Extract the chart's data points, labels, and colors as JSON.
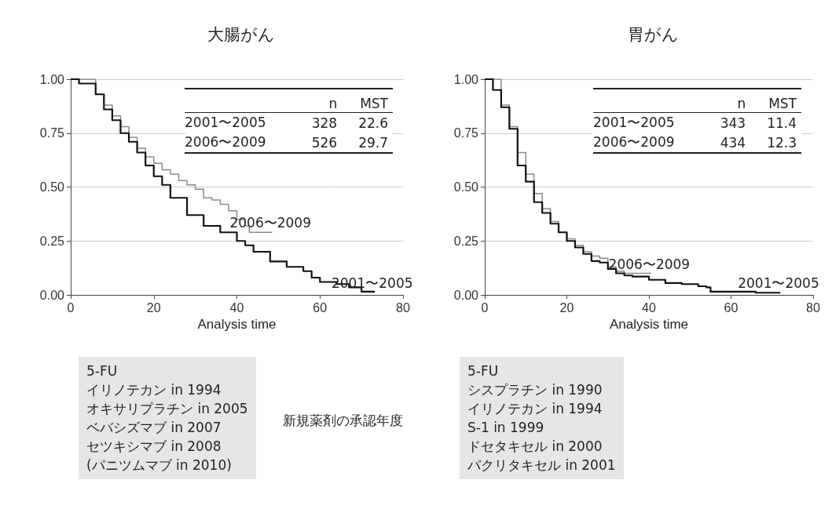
{
  "chart_data": [
    {
      "type": "step",
      "title": "大腸がん",
      "xlabel": "Analysis time",
      "xlim": [
        0,
        80
      ],
      "xticks": [
        0,
        20,
        40,
        60,
        80
      ],
      "ylim": [
        0,
        1
      ],
      "yticks": [
        {
          "value": 0,
          "label": "0.00"
        },
        {
          "value": 0.25,
          "label": "0.25"
        },
        {
          "value": 0.5,
          "label": "0.50"
        },
        {
          "value": 0.75,
          "label": "0.75"
        },
        {
          "value": 1,
          "label": "1.00"
        }
      ],
      "grid": "y",
      "legend": false,
      "marker": "none",
      "line_style": "solid",
      "series": [
        {
          "name": "2006〜2009",
          "color": "#8a8a8a",
          "x": [
            0,
            6,
            8,
            10,
            12,
            14,
            16,
            18,
            20,
            22,
            24,
            26,
            28,
            30,
            32,
            34,
            36,
            38,
            40,
            42,
            43,
            48.5
          ],
          "values": [
            1,
            0.93,
            0.88,
            0.83,
            0.78,
            0.73,
            0.68,
            0.64,
            0.61,
            0.58,
            0.56,
            0.53,
            0.51,
            0.49,
            0.45,
            0.44,
            0.42,
            0.39,
            0.35,
            0.32,
            0.29,
            0.29
          ]
        },
        {
          "name": "2001〜2005",
          "color": "#111111",
          "x": [
            0,
            2,
            6,
            8,
            10,
            12,
            14,
            16,
            18,
            20,
            22,
            24,
            28,
            32,
            36,
            40,
            42,
            44,
            48,
            52,
            56,
            58,
            60,
            64,
            67,
            70,
            73
          ],
          "values": [
            1,
            0.98,
            0.93,
            0.86,
            0.81,
            0.75,
            0.71,
            0.66,
            0.6,
            0.55,
            0.51,
            0.45,
            0.37,
            0.32,
            0.29,
            0.25,
            0.23,
            0.2,
            0.155,
            0.13,
            0.11,
            0.08,
            0.06,
            0.05,
            0.035,
            0.015,
            0.01
          ]
        }
      ],
      "annotations": [
        "\tn\tMST\n2001〜2005\t328\t22.6\n2006〜2009\t526\t29.7",
        "5-FU\nイリノテカン in 1994\nオキサリプラチン in 2005\nベバシズマブ in 2007\nセツキシマブ in 2008\n(パニツムマブ in 2010)",
        "新規薬剤の承認年度"
      ]
    },
    {
      "type": "step",
      "title": "胃がん",
      "xlabel": "Analysis time",
      "xlim": [
        0,
        80
      ],
      "xticks": [
        0,
        20,
        40,
        60,
        80
      ],
      "ylim": [
        0,
        1
      ],
      "yticks": [
        {
          "value": 0,
          "label": "0.00"
        },
        {
          "value": 0.25,
          "label": "0.25"
        },
        {
          "value": 0.5,
          "label": "0.50"
        },
        {
          "value": 0.75,
          "label": "0.75"
        },
        {
          "value": 1,
          "label": "1.00"
        }
      ],
      "grid": "y",
      "legend": false,
      "marker": "none",
      "line_style": "solid",
      "series": [
        {
          "name": "2006〜2009",
          "color": "#8a8a8a",
          "x": [
            0,
            4,
            6,
            8,
            10,
            12,
            14,
            16,
            18,
            20,
            22,
            24,
            26,
            28,
            30,
            32,
            34,
            40.5
          ],
          "values": [
            1,
            0.88,
            0.78,
            0.66,
            0.56,
            0.47,
            0.4,
            0.34,
            0.29,
            0.26,
            0.23,
            0.2,
            0.18,
            0.17,
            0.13,
            0.11,
            0.1,
            0.1
          ]
        },
        {
          "name": "2001〜2005",
          "color": "#111111",
          "x": [
            0,
            2,
            4,
            6,
            8,
            10,
            12,
            14,
            16,
            18,
            20,
            22,
            24,
            26,
            28,
            30,
            32,
            34,
            36,
            40,
            44,
            48,
            52,
            54,
            55,
            60,
            66,
            72
          ],
          "values": [
            1,
            0.95,
            0.87,
            0.77,
            0.6,
            0.525,
            0.43,
            0.38,
            0.33,
            0.29,
            0.25,
            0.22,
            0.19,
            0.157,
            0.15,
            0.12,
            0.1,
            0.09,
            0.085,
            0.07,
            0.055,
            0.05,
            0.04,
            0.035,
            0.015,
            0.015,
            0.01,
            0.01
          ]
        }
      ],
      "annotations": [
        "\tn\tMST\n2001〜2005\t343\t11.4\n2006〜2009\t434\t12.3",
        "5-FU\nシスプラチン in 1990\nイリノテカン in 1994\nS-1 in 1999\nドセタキセル in 2000\nパクリタキセル in 2001"
      ]
    }
  ]
}
